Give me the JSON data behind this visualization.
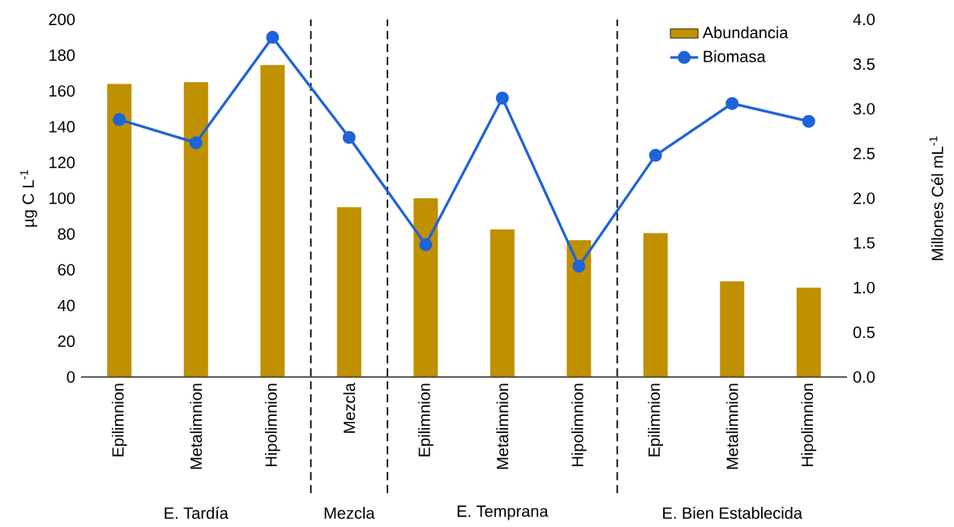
{
  "chart_data": {
    "type": "bar",
    "categories": [
      "Epilimnion",
      "Metalimnion",
      "Hipolimnion",
      "Mezcla",
      "Epilimnion",
      "Metalimnion",
      "Hipolimnion",
      "Epilimnion",
      "Metalimnion",
      "Hipolimnion"
    ],
    "series": [
      {
        "name": "Abundancia",
        "axis": "y2",
        "color": "#bf9000",
        "values": [
          3.28,
          3.3,
          3.49,
          1.9,
          2.0,
          1.65,
          1.53,
          1.61,
          1.07,
          1.0
        ]
      },
      {
        "name": "Biomasa",
        "type": "line",
        "axis": "y",
        "color": "#1f63d8",
        "values": [
          144,
          131,
          190,
          134,
          74,
          156,
          62,
          124,
          153,
          143
        ]
      }
    ],
    "ylabel": "µg C L$^{-1}$",
    "y2label": "Millones Cél mL$^{-1}$",
    "ylim": [
      0,
      200
    ],
    "yticks": [
      0,
      20,
      40,
      60,
      80,
      100,
      120,
      140,
      160,
      180,
      200
    ],
    "y2lim": [
      0,
      4
    ],
    "y2ticks": [
      {
        "value": 0,
        "label": "0.0"
      },
      {
        "value": 0.5,
        "label": "0.5"
      },
      {
        "value": 1,
        "label": "1.0"
      },
      {
        "value": 1.5,
        "label": "1.5"
      },
      {
        "value": 2,
        "label": "2.0"
      },
      {
        "value": 2.5,
        "label": "2.5"
      },
      {
        "value": 3,
        "label": "3.0"
      },
      {
        "value": 3.5,
        "label": "3.5"
      },
      {
        "value": 4,
        "label": "4.0"
      }
    ],
    "annotations": [
      "E. Tardía",
      "Mezcla",
      "E. Temprana",
      "E. Bien Establecida"
    ],
    "legend": "top right",
    "marker": "circle",
    "line_style": "solid"
  }
}
